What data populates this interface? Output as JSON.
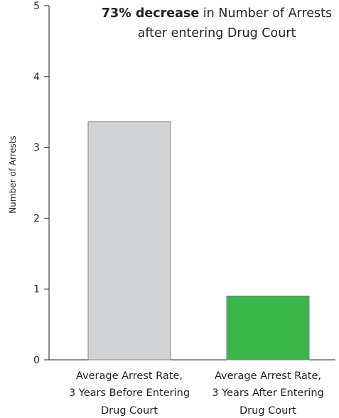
{
  "chart_data": {
    "type": "bar",
    "title_lines": [
      {
        "bold": "73% decrease",
        "rest": " in Number of Arrests"
      },
      {
        "bold": "",
        "rest": "after entering Drug Court"
      }
    ],
    "ylabel": "Number of Arrests",
    "xlabel": "",
    "ylim": [
      0,
      5
    ],
    "yticks": [
      "0",
      "1",
      "2",
      "3",
      "4",
      "5"
    ],
    "categories": [
      [
        "Average Arrest Rate,",
        "3 Years Before Entering",
        "Drug Court"
      ],
      [
        "Average Arrest Rate,",
        "3 Years After Entering",
        "Drug Court"
      ]
    ],
    "values": [
      3.36,
      0.9
    ],
    "bar_colors": [
      "#d1d3d4",
      "#39b54a"
    ],
    "bar_stroke": "#808285",
    "axis_color": "#231f20",
    "grid": false
  }
}
